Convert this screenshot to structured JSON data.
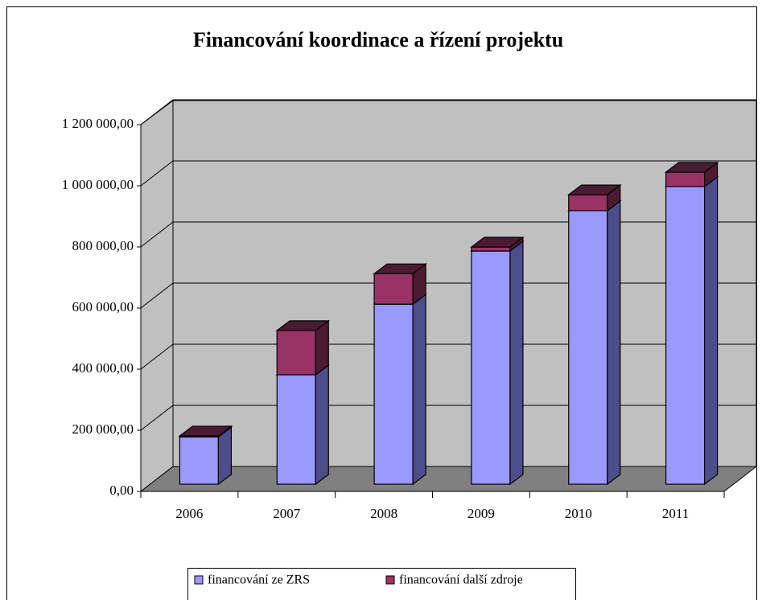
{
  "chart_data": {
    "type": "bar3d_stacked",
    "title": "Financování koordinace a řízení projektu",
    "categories": [
      "2006",
      "2007",
      "2008",
      "2009",
      "2010",
      "2011"
    ],
    "series": [
      {
        "name": "financování ze ZRS",
        "color": "#9999ff",
        "side": "#4d4d8c",
        "values": [
          155000,
          358000,
          589000,
          763000,
          895000,
          974000
        ]
      },
      {
        "name": "financování další zdroje",
        "color": "#993366",
        "side": "#4d1a33",
        "values": [
          3000,
          145000,
          100000,
          13000,
          52000,
          47000
        ]
      }
    ],
    "ylim": [
      0,
      1200000
    ],
    "yticks": [
      {
        "value": 0,
        "label": "0,00"
      },
      {
        "value": 200000,
        "label": "200 000,00"
      },
      {
        "value": 400000,
        "label": "400 000,00"
      },
      {
        "value": 600000,
        "label": "600 000,00"
      },
      {
        "value": 800000,
        "label": "800 000,00"
      },
      {
        "value": 1000000,
        "label": "1 000 000,00"
      },
      {
        "value": 1200000,
        "label": "1 200 000,00"
      }
    ],
    "grid": true,
    "legend": "bottom"
  }
}
